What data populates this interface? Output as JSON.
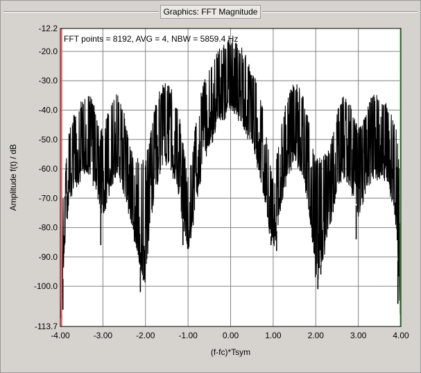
{
  "window": {
    "title": "Graphics: FFT Magnitude"
  },
  "colors": {
    "background": "#d6d3ce",
    "plot_area": "#ffffff",
    "grid": "#808080",
    "trace": "#000000",
    "left_marker": "#ff5a5a",
    "right_marker": "#4fd24f"
  },
  "chart_data": {
    "type": "line",
    "title": "",
    "annotation": "FFT points = 8192, AVG = 4, NBW = 5859.4 Hz",
    "xlabel": "(f-fc)*Tsym",
    "ylabel": "Amplitude f(t) / dB",
    "xlim": [
      -4.0,
      4.0
    ],
    "ylim": [
      -113.7,
      -12.2
    ],
    "grid": true,
    "x_ticks": [
      -4.0,
      -3.0,
      -2.0,
      -1.0,
      0.0,
      1.0,
      2.0,
      3.0,
      4.0
    ],
    "x_tick_labels": [
      "-4.00",
      "-3.00",
      "-2.00",
      "-1.00",
      "0.00",
      "1.00",
      "2.00",
      "3.00",
      "4.00"
    ],
    "y_ticks": [
      -12.2,
      -20.0,
      -30.0,
      -40.0,
      -50.0,
      -60.0,
      -70.0,
      -80.0,
      -90.0,
      -100.0,
      -113.7
    ],
    "y_tick_labels": [
      "-12.2",
      "-20.0",
      "-30.0",
      "-40.0",
      "-50.0",
      "-60.0",
      "-70.0",
      "-80.0",
      "-90.0",
      "-100.0",
      "-113.7"
    ],
    "markers": [
      {
        "x": -3.97,
        "color": "#ff5a5a"
      },
      {
        "x": 3.99,
        "color": "#4fd24f"
      }
    ],
    "series": [
      {
        "x": [
          -3.98,
          -3.9,
          -3.8,
          -3.7,
          -3.6,
          -3.5,
          -3.4,
          -3.3,
          -3.2,
          -3.1,
          -3.0,
          -2.9,
          -2.8,
          -2.7,
          -2.6,
          -2.5,
          -2.4,
          -2.3,
          -2.2,
          -2.1,
          -2.0,
          -1.9,
          -1.8,
          -1.7,
          -1.6,
          -1.5,
          -1.4,
          -1.3,
          -1.2,
          -1.1,
          -1.0,
          -0.9,
          -0.8,
          -0.7,
          -0.6,
          -0.5,
          -0.4,
          -0.3,
          -0.2,
          -0.1,
          0.0,
          0.1,
          0.2,
          0.3,
          0.4,
          0.5,
          0.6,
          0.7,
          0.8,
          0.9,
          1.0,
          1.1,
          1.2,
          1.3,
          1.4,
          1.5,
          1.6,
          1.7,
          1.8,
          1.9,
          2.0,
          2.1,
          2.2,
          2.3,
          2.4,
          2.5,
          2.6,
          2.7,
          2.8,
          2.9,
          3.0,
          3.1,
          3.2,
          3.3,
          3.4,
          3.5,
          3.6,
          3.7,
          3.8,
          3.9,
          3.98
        ],
        "top": [
          -78,
          -65,
          -48,
          -44,
          -40,
          -38,
          -37,
          -36,
          -40,
          -46,
          -48,
          -43,
          -38,
          -36,
          -37,
          -42,
          -50,
          -55,
          -58,
          -57,
          -58,
          -50,
          -42,
          -36,
          -33,
          -32,
          -34,
          -38,
          -44,
          -54,
          -64,
          -55,
          -44,
          -36,
          -30,
          -27,
          -24,
          -21,
          -19,
          -18,
          -17,
          -18,
          -19,
          -21,
          -24,
          -28,
          -31,
          -36,
          -44,
          -56,
          -64,
          -54,
          -44,
          -38,
          -34,
          -32,
          -33,
          -36,
          -42,
          -50,
          -58,
          -57,
          -56,
          -55,
          -50,
          -42,
          -37,
          -36,
          -38,
          -43,
          -48,
          -45,
          -40,
          -37,
          -36,
          -37,
          -38,
          -40,
          -44,
          -48,
          -64
        ],
        "bottom": [
          -110,
          -85,
          -72,
          -66,
          -64,
          -62,
          -61,
          -62,
          -65,
          -70,
          -75,
          -70,
          -64,
          -62,
          -63,
          -67,
          -74,
          -80,
          -88,
          -95,
          -98,
          -80,
          -70,
          -62,
          -58,
          -57,
          -59,
          -64,
          -70,
          -80,
          -86,
          -80,
          -70,
          -62,
          -56,
          -52,
          -48,
          -44,
          -42,
          -41,
          -40,
          -41,
          -42,
          -44,
          -48,
          -52,
          -56,
          -62,
          -70,
          -80,
          -86,
          -80,
          -70,
          -64,
          -59,
          -57,
          -58,
          -62,
          -70,
          -80,
          -98,
          -94,
          -88,
          -80,
          -74,
          -67,
          -63,
          -62,
          -64,
          -70,
          -75,
          -71,
          -66,
          -63,
          -62,
          -62,
          -63,
          -65,
          -70,
          -80,
          -110
        ],
        "dips": [
          {
            "x": -3.94,
            "y": -108
          },
          {
            "x": -3.05,
            "y": -86
          },
          {
            "x": -2.12,
            "y": -102
          },
          {
            "x": -2.05,
            "y": -98
          },
          {
            "x": -1.12,
            "y": -86
          },
          {
            "x": -0.98,
            "y": -84
          },
          {
            "x": 0.95,
            "y": -86
          },
          {
            "x": 1.08,
            "y": -88
          },
          {
            "x": 2.05,
            "y": -101
          },
          {
            "x": 2.12,
            "y": -96
          },
          {
            "x": 2.95,
            "y": -84
          },
          {
            "x": 3.93,
            "y": -106
          }
        ]
      }
    ]
  }
}
